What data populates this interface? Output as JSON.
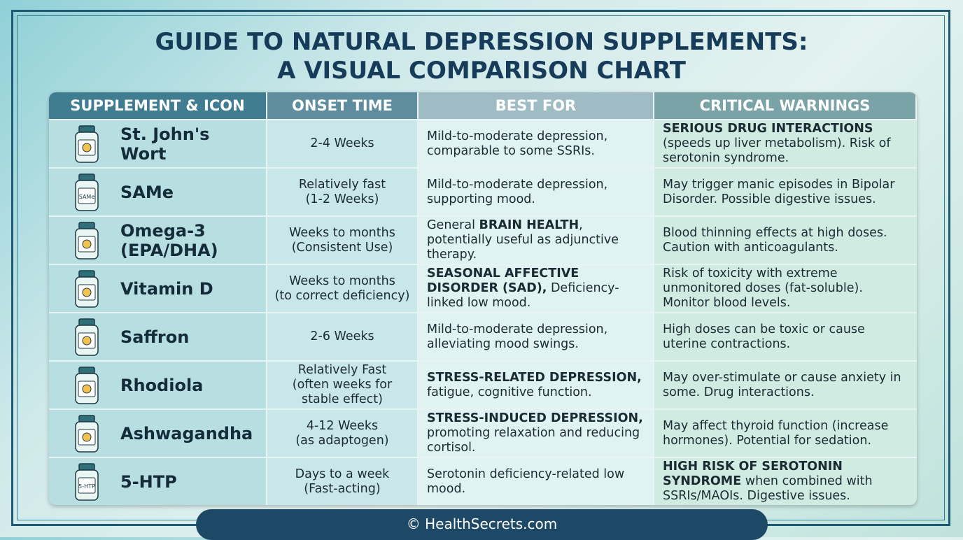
{
  "header": {
    "title": [
      "GUIDE TO NATURAL DEPRESSION SUPPLEMENTS:",
      "A VISUAL COMPARISON CHART"
    ]
  },
  "table": {
    "columns": [
      "SUPPLEMENT & ICON",
      "ONSET TIME",
      "BEST FOR",
      "CRITICAL WARNINGS"
    ],
    "rows": [
      {
        "name": "St. John's Wort",
        "onset": [
          "2-4 Weeks"
        ],
        "best_for": {
          "text": "Mild-to-moderate depression, comparable to some SSRIs."
        },
        "warnings": {
          "strong": "SERIOUS DRUG INTERACTIONS",
          "text": "(speeds up liver metabolism). Risk of serotonin syndrome."
        }
      },
      {
        "name": "SAMe",
        "label": "SAMe",
        "onset": [
          "Relatively fast",
          "(1-2 Weeks)"
        ],
        "best_for": {
          "text": "Mild-to-moderate depression, supporting mood."
        },
        "warnings": {
          "text": "May trigger manic episodes in Bipolar Disorder. Possible digestive issues."
        }
      },
      {
        "name": "Omega-3 (EPA/DHA)",
        "onset": [
          "Weeks to months",
          "(Consistent Use)"
        ],
        "best_for": {
          "pre": "General",
          "strong": "BRAIN HEALTH",
          "text": ", potentially useful as adjunctive therapy."
        },
        "warnings": {
          "text": "Blood thinning effects at high doses. Caution with anticoagulants."
        }
      },
      {
        "name": "Vitamin D",
        "onset": [
          "Weeks to months",
          "(to correct deficiency)"
        ],
        "best_for": {
          "strong": "SEASONAL AFFECTIVE DISORDER (SAD),",
          "text": "Deficiency-linked low mood."
        },
        "warnings": {
          "text": "Risk of toxicity with extreme unmonitored doses (fat-soluble). Monitor blood levels."
        }
      },
      {
        "name": "Saffron",
        "onset": [
          "2-6 Weeks"
        ],
        "best_for": {
          "text": "Mild-to-moderate depression, alleviating mood swings."
        },
        "warnings": {
          "text": "High doses can be toxic or cause uterine contractions."
        }
      },
      {
        "name": "Rhodiola",
        "onset": [
          "Relatively Fast",
          "(often weeks for",
          "stable effect)"
        ],
        "best_for": {
          "strong": "STRESS-RELATED DEPRESSION,",
          "text": "fatigue, cognitive function."
        },
        "warnings": {
          "text": "May over-stimulate or cause anxiety in some. Drug interactions."
        }
      },
      {
        "name": "Ashwagandha",
        "onset": [
          "4-12 Weeks",
          "(as adaptogen)"
        ],
        "best_for": {
          "strong": "STRESS-INDUCED DEPRESSION,",
          "text": "promoting relaxation and reducing cortisol."
        },
        "warnings": {
          "text": "May affect thyroid function (increase hormones). Potential for sedation."
        }
      },
      {
        "name": "5-HTP",
        "label": "5-HTP",
        "onset": [
          "Days to a week",
          "(Fast-acting)"
        ],
        "best_for": {
          "text": "Serotonin deficiency-related low mood."
        },
        "warnings": {
          "strong": "HIGH RISK OF SEROTONIN SYNDROME",
          "text": "when combined with SSRIs/MAOIs. Digestive issues."
        }
      }
    ]
  },
  "footer": {
    "text": "© HealthSecrets.com"
  }
}
